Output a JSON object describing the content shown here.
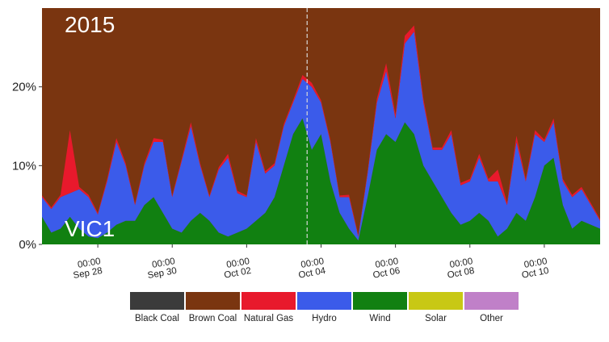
{
  "chart_data": {
    "type": "area",
    "stacked": true,
    "percent": true,
    "year_label": "2015",
    "region_label": "VIC1",
    "ylim": [
      0,
      30
    ],
    "yticks": [
      {
        "value": 0,
        "label": "0%"
      },
      {
        "value": 10,
        "label": "10%"
      },
      {
        "value": 20,
        "label": "20%"
      }
    ],
    "xlim": [
      "2015-09-26T12:00",
      "2015-10-11T12:00"
    ],
    "xticks": [
      {
        "time": "2015-09-28T00:00",
        "line1": "00:00",
        "line2": "Sep 28"
      },
      {
        "time": "2015-09-30T00:00",
        "line1": "00:00",
        "line2": "Sep 30"
      },
      {
        "time": "2015-10-02T00:00",
        "line1": "00:00",
        "line2": "Oct 02"
      },
      {
        "time": "2015-10-04T00:00",
        "line1": "00:00",
        "line2": "Oct 04"
      },
      {
        "time": "2015-10-06T00:00",
        "line1": "00:00",
        "line2": "Oct 06"
      },
      {
        "time": "2015-10-08T00:00",
        "line1": "00:00",
        "line2": "Oct 08"
      },
      {
        "time": "2015-10-10T00:00",
        "line1": "00:00",
        "line2": "Oct 10"
      }
    ],
    "vline": "2015-10-03T15:00",
    "legend_position": "bottom",
    "legend": [
      {
        "name": "Black Coal",
        "color": "#3b3b3b"
      },
      {
        "name": "Brown Coal",
        "color": "#7a3510"
      },
      {
        "name": "Natural Gas",
        "color": "#e8192c"
      },
      {
        "name": "Hydro",
        "color": "#3b5bea"
      },
      {
        "name": "Wind",
        "color": "#118011"
      },
      {
        "name": "Solar",
        "color": "#c8c814"
      },
      {
        "name": "Other",
        "color": "#c080c8"
      }
    ],
    "background_series": "Brown Coal",
    "series": [
      {
        "name": "Wind",
        "color": "#118011",
        "points": [
          [
            "2015-09-26T12:00",
            3.5
          ],
          [
            "2015-09-26T18:00",
            1.5
          ],
          [
            "2015-09-27T00:00",
            2.0
          ],
          [
            "2015-09-27T06:00",
            3.5
          ],
          [
            "2015-09-27T12:00",
            2.0
          ],
          [
            "2015-09-27T18:00",
            1.0
          ],
          [
            "2015-09-28T00:00",
            0.8
          ],
          [
            "2015-09-28T06:00",
            1.5
          ],
          [
            "2015-09-28T12:00",
            2.5
          ],
          [
            "2015-09-28T18:00",
            3.0
          ],
          [
            "2015-09-29T00:00",
            3.0
          ],
          [
            "2015-09-29T06:00",
            5.0
          ],
          [
            "2015-09-29T12:00",
            6.0
          ],
          [
            "2015-09-29T18:00",
            4.0
          ],
          [
            "2015-09-30T00:00",
            2.0
          ],
          [
            "2015-09-30T06:00",
            1.5
          ],
          [
            "2015-09-30T12:00",
            3.0
          ],
          [
            "2015-09-30T18:00",
            4.0
          ],
          [
            "2015-10-01T00:00",
            3.0
          ],
          [
            "2015-10-01T06:00",
            1.5
          ],
          [
            "2015-10-01T12:00",
            1.0
          ],
          [
            "2015-10-01T18:00",
            1.5
          ],
          [
            "2015-10-02T00:00",
            2.0
          ],
          [
            "2015-10-02T06:00",
            3.0
          ],
          [
            "2015-10-02T12:00",
            4.0
          ],
          [
            "2015-10-02T18:00",
            6.0
          ],
          [
            "2015-10-03T00:00",
            10.0
          ],
          [
            "2015-10-03T06:00",
            14.0
          ],
          [
            "2015-10-03T12:00",
            16.0
          ],
          [
            "2015-10-03T18:00",
            12.0
          ],
          [
            "2015-10-04T00:00",
            14.0
          ],
          [
            "2015-10-04T06:00",
            8.0
          ],
          [
            "2015-10-04T12:00",
            4.0
          ],
          [
            "2015-10-04T18:00",
            2.0
          ],
          [
            "2015-10-05T00:00",
            0.5
          ],
          [
            "2015-10-05T06:00",
            6.0
          ],
          [
            "2015-10-05T12:00",
            12.0
          ],
          [
            "2015-10-05T18:00",
            14.0
          ],
          [
            "2015-10-06T00:00",
            13.0
          ],
          [
            "2015-10-06T06:00",
            15.5
          ],
          [
            "2015-10-06T12:00",
            14.0
          ],
          [
            "2015-10-06T18:00",
            10.0
          ],
          [
            "2015-10-07T00:00",
            8.0
          ],
          [
            "2015-10-07T06:00",
            6.0
          ],
          [
            "2015-10-07T12:00",
            4.0
          ],
          [
            "2015-10-07T18:00",
            2.5
          ],
          [
            "2015-10-08T00:00",
            3.0
          ],
          [
            "2015-10-08T06:00",
            4.0
          ],
          [
            "2015-10-08T12:00",
            3.0
          ],
          [
            "2015-10-08T18:00",
            1.0
          ],
          [
            "2015-10-09T00:00",
            2.0
          ],
          [
            "2015-10-09T06:00",
            4.0
          ],
          [
            "2015-10-09T12:00",
            3.0
          ],
          [
            "2015-10-09T18:00",
            6.0
          ],
          [
            "2015-10-10T00:00",
            10.0
          ],
          [
            "2015-10-10T06:00",
            11.0
          ],
          [
            "2015-10-10T12:00",
            5.0
          ],
          [
            "2015-10-10T18:00",
            2.0
          ],
          [
            "2015-10-11T00:00",
            3.0
          ],
          [
            "2015-10-11T12:00",
            2.0
          ]
        ]
      },
      {
        "name": "Hydro",
        "color": "#3b5bea",
        "points": [
          [
            "2015-09-26T12:00",
            2.5
          ],
          [
            "2015-09-26T18:00",
            3.0
          ],
          [
            "2015-09-27T00:00",
            4.0
          ],
          [
            "2015-09-27T06:00",
            3.0
          ],
          [
            "2015-09-27T12:00",
            5.0
          ],
          [
            "2015-09-27T18:00",
            5.0
          ],
          [
            "2015-09-28T00:00",
            3.0
          ],
          [
            "2015-09-28T06:00",
            6.5
          ],
          [
            "2015-09-28T12:00",
            10.5
          ],
          [
            "2015-09-28T18:00",
            7.0
          ],
          [
            "2015-09-29T00:00",
            2.0
          ],
          [
            "2015-09-29T06:00",
            5.0
          ],
          [
            "2015-09-29T12:00",
            7.0
          ],
          [
            "2015-09-29T18:00",
            9.0
          ],
          [
            "2015-09-30T00:00",
            4.0
          ],
          [
            "2015-09-30T06:00",
            9.0
          ],
          [
            "2015-09-30T12:00",
            12.0
          ],
          [
            "2015-09-30T18:00",
            6.0
          ],
          [
            "2015-10-01T00:00",
            3.0
          ],
          [
            "2015-10-01T06:00",
            8.0
          ],
          [
            "2015-10-01T12:00",
            10.0
          ],
          [
            "2015-10-01T18:00",
            5.0
          ],
          [
            "2015-10-02T00:00",
            4.0
          ],
          [
            "2015-10-02T06:00",
            10.0
          ],
          [
            "2015-10-02T12:00",
            5.0
          ],
          [
            "2015-10-02T18:00",
            4.0
          ],
          [
            "2015-10-03T00:00",
            5.0
          ],
          [
            "2015-10-03T06:00",
            4.0
          ],
          [
            "2015-10-03T12:00",
            5.0
          ],
          [
            "2015-10-03T18:00",
            8.0
          ],
          [
            "2015-10-04T00:00",
            4.0
          ],
          [
            "2015-10-04T06:00",
            5.0
          ],
          [
            "2015-10-04T12:00",
            2.0
          ],
          [
            "2015-10-04T18:00",
            4.0
          ],
          [
            "2015-10-05T00:00",
            0.5
          ],
          [
            "2015-10-05T06:00",
            3.0
          ],
          [
            "2015-10-05T12:00",
            6.0
          ],
          [
            "2015-10-05T18:00",
            8.0
          ],
          [
            "2015-10-06T00:00",
            3.0
          ],
          [
            "2015-10-06T06:00",
            10.0
          ],
          [
            "2015-10-06T12:00",
            13.0
          ],
          [
            "2015-10-06T18:00",
            8.0
          ],
          [
            "2015-10-07T00:00",
            4.0
          ],
          [
            "2015-10-07T06:00",
            6.0
          ],
          [
            "2015-10-07T12:00",
            10.0
          ],
          [
            "2015-10-07T18:00",
            5.0
          ],
          [
            "2015-10-08T00:00",
            5.0
          ],
          [
            "2015-10-08T06:00",
            7.0
          ],
          [
            "2015-10-08T12:00",
            5.0
          ],
          [
            "2015-10-08T18:00",
            7.0
          ],
          [
            "2015-10-09T00:00",
            3.0
          ],
          [
            "2015-10-09T06:00",
            9.0
          ],
          [
            "2015-10-09T12:00",
            5.0
          ],
          [
            "2015-10-09T18:00",
            8.0
          ],
          [
            "2015-10-10T00:00",
            3.0
          ],
          [
            "2015-10-10T06:00",
            4.5
          ],
          [
            "2015-10-10T12:00",
            3.0
          ],
          [
            "2015-10-10T18:00",
            4.0
          ],
          [
            "2015-10-11T00:00",
            4.0
          ],
          [
            "2015-10-11T12:00",
            1.0
          ]
        ]
      },
      {
        "name": "Natural Gas",
        "color": "#e8192c",
        "points": [
          [
            "2015-09-26T12:00",
            0.2
          ],
          [
            "2015-09-26T18:00",
            0.2
          ],
          [
            "2015-09-27T00:00",
            0.3
          ],
          [
            "2015-09-27T06:00",
            8.0
          ],
          [
            "2015-09-27T12:00",
            0.3
          ],
          [
            "2015-09-27T18:00",
            0.3
          ],
          [
            "2015-09-28T00:00",
            0.2
          ],
          [
            "2015-09-28T06:00",
            0.3
          ],
          [
            "2015-09-28T12:00",
            0.5
          ],
          [
            "2015-09-28T18:00",
            0.3
          ],
          [
            "2015-09-29T00:00",
            0.2
          ],
          [
            "2015-09-29T06:00",
            0.3
          ],
          [
            "2015-09-29T12:00",
            0.5
          ],
          [
            "2015-09-29T18:00",
            0.3
          ],
          [
            "2015-09-30T00:00",
            0.2
          ],
          [
            "2015-09-30T06:00",
            0.3
          ],
          [
            "2015-09-30T12:00",
            0.5
          ],
          [
            "2015-09-30T18:00",
            0.3
          ],
          [
            "2015-10-01T00:00",
            0.2
          ],
          [
            "2015-10-01T06:00",
            0.3
          ],
          [
            "2015-10-01T12:00",
            0.5
          ],
          [
            "2015-10-01T18:00",
            0.3
          ],
          [
            "2015-10-02T00:00",
            0.2
          ],
          [
            "2015-10-02T06:00",
            0.5
          ],
          [
            "2015-10-02T12:00",
            0.3
          ],
          [
            "2015-10-02T18:00",
            0.3
          ],
          [
            "2015-10-03T00:00",
            0.3
          ],
          [
            "2015-10-03T06:00",
            0.3
          ],
          [
            "2015-10-03T12:00",
            0.5
          ],
          [
            "2015-10-03T18:00",
            0.5
          ],
          [
            "2015-10-04T00:00",
            0.3
          ],
          [
            "2015-10-04T06:00",
            0.3
          ],
          [
            "2015-10-04T12:00",
            0.2
          ],
          [
            "2015-10-04T18:00",
            0.3
          ],
          [
            "2015-10-05T00:00",
            0.2
          ],
          [
            "2015-10-05T06:00",
            0.3
          ],
          [
            "2015-10-05T12:00",
            0.5
          ],
          [
            "2015-10-05T18:00",
            1.0
          ],
          [
            "2015-10-06T00:00",
            0.5
          ],
          [
            "2015-10-06T06:00",
            1.0
          ],
          [
            "2015-10-06T12:00",
            0.8
          ],
          [
            "2015-10-06T18:00",
            0.5
          ],
          [
            "2015-10-07T00:00",
            0.3
          ],
          [
            "2015-10-07T06:00",
            0.3
          ],
          [
            "2015-10-07T12:00",
            0.5
          ],
          [
            "2015-10-07T18:00",
            0.3
          ],
          [
            "2015-10-08T00:00",
            0.3
          ],
          [
            "2015-10-08T06:00",
            0.5
          ],
          [
            "2015-10-08T12:00",
            0.3
          ],
          [
            "2015-10-08T18:00",
            1.5
          ],
          [
            "2015-10-09T00:00",
            0.3
          ],
          [
            "2015-10-09T06:00",
            0.8
          ],
          [
            "2015-10-09T12:00",
            0.3
          ],
          [
            "2015-10-09T18:00",
            0.5
          ],
          [
            "2015-10-10T00:00",
            0.3
          ],
          [
            "2015-10-10T06:00",
            0.5
          ],
          [
            "2015-10-10T12:00",
            0.3
          ],
          [
            "2015-10-10T18:00",
            0.3
          ],
          [
            "2015-10-11T00:00",
            0.3
          ],
          [
            "2015-10-11T12:00",
            0.2
          ]
        ]
      }
    ]
  }
}
